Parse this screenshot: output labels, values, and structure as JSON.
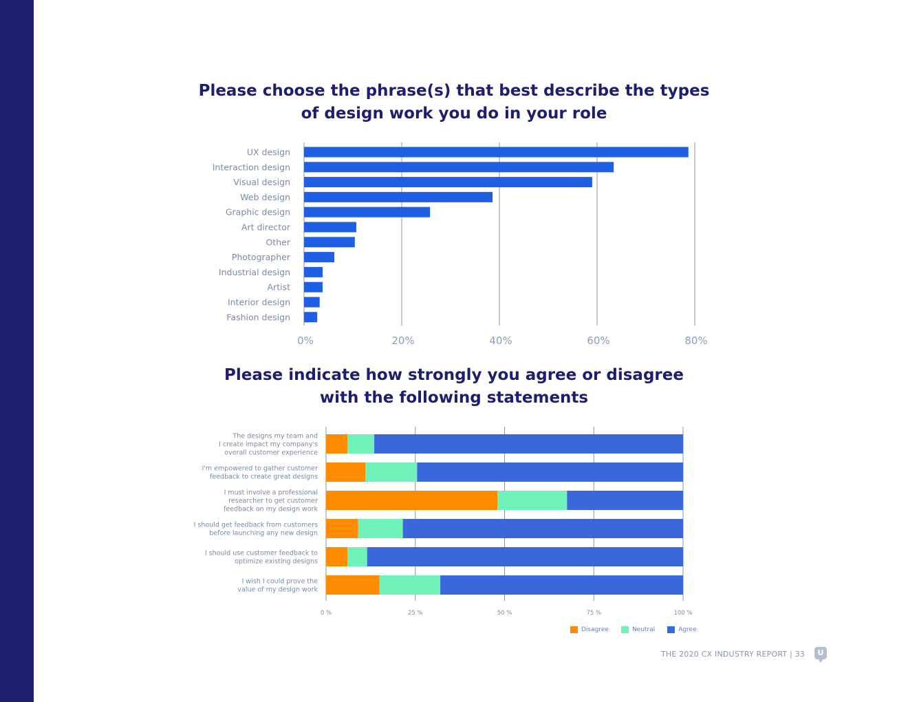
{
  "colors": {
    "sidebar": "#1f1f72",
    "title": "#1e1e6e",
    "bar": "#1f5fe3",
    "disagree": "#ff8c00",
    "neutral": "#70f3b8",
    "agree": "#3b67dc"
  },
  "chart_data": [
    {
      "type": "bar",
      "orientation": "horizontal",
      "title": "Please choose the phrase(s) that best describe the types of design work you do in your role",
      "title_lines": [
        "Please choose the phrase(s) that best describe the types",
        "of design work you do in your role"
      ],
      "categories": [
        "UX design",
        "Interaction design",
        "Visual design",
        "Web design",
        "Graphic design",
        "Art director",
        "Other",
        "Photographer",
        "Industrial design",
        "Artist",
        "Interior design",
        "Fashion design"
      ],
      "values": [
        78.7,
        63.4,
        59.0,
        38.6,
        25.8,
        10.7,
        10.4,
        6.2,
        3.8,
        3.8,
        3.2,
        2.7
      ],
      "unit": "%",
      "xlim": [
        0,
        80
      ],
      "xticks": [
        "0%",
        "20%",
        "40%",
        "60%",
        "80%"
      ],
      "grid": "vertical"
    },
    {
      "type": "bar",
      "orientation": "horizontal",
      "stacked": true,
      "title": "Please indicate how strongly you agree or disagree with the following statements",
      "title_lines": [
        "Please indicate how strongly you agree or disagree",
        "with the following statements"
      ],
      "categories": [
        [
          "The designs my team and",
          "I create impact my company's",
          "overall customer experience"
        ],
        [
          "I'm empowered to gather customer",
          "feedback to create great designs"
        ],
        [
          "I must involve a professional",
          "researcher to get customer",
          "feedback on my design work"
        ],
        [
          "I should get feedback from customers",
          "before launching any new design"
        ],
        [
          "I should use customer feedback to",
          "optimize existing designs"
        ],
        [
          "I wish I could prove the",
          "value of my design work"
        ]
      ],
      "series": [
        {
          "name": "Disagree",
          "values": [
            6,
            11,
            48,
            9,
            6,
            15
          ]
        },
        {
          "name": "Neutral",
          "values": [
            7.5,
            14.5,
            19.5,
            12.5,
            5.5,
            17
          ]
        },
        {
          "name": "Agree",
          "values": [
            86.5,
            74.5,
            32.5,
            78.5,
            88.5,
            68
          ]
        }
      ],
      "unit": "%",
      "xlim": [
        0,
        100
      ],
      "xticks": [
        "0 %",
        "25 %",
        "50 %",
        "75 %",
        "100 %"
      ],
      "legend": "bottom-right",
      "grid": "vertical"
    }
  ],
  "legend": {
    "disagree": "Disagree",
    "neutral": "Neutral",
    "agree": "Agree"
  },
  "footer": {
    "text": "THE 2020 CX INDUSTRY REPORT   |  33",
    "logo_letter": "U"
  }
}
